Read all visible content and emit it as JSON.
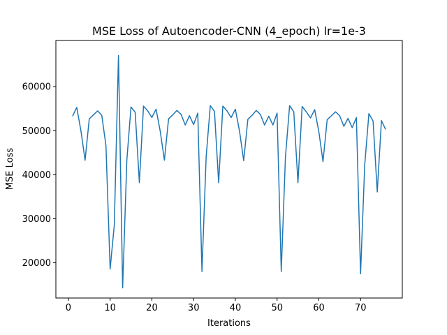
{
  "chart_data": {
    "type": "line",
    "title": "MSE Loss of Autoencoder-CNN (4_epoch) lr=1e-3",
    "xlabel": "Iterations",
    "ylabel": "MSE Loss",
    "xlim": [
      -3,
      80
    ],
    "ylim": [
      12000,
      70500
    ],
    "xticks": [
      0,
      10,
      20,
      30,
      40,
      50,
      60,
      70
    ],
    "yticks": [
      20000,
      30000,
      40000,
      50000,
      60000
    ],
    "ytick_labels": [
      "20000",
      "30000",
      "40000",
      "50000",
      "60000"
    ],
    "grid": false,
    "legend": "none",
    "series": [
      {
        "color": "#1f77b4",
        "x": [
          1,
          2,
          3,
          4,
          5,
          6,
          7,
          8,
          9,
          10,
          11,
          12,
          13,
          14,
          15,
          16,
          17,
          18,
          19,
          20,
          21,
          22,
          23,
          24,
          25,
          26,
          27,
          28,
          29,
          30,
          31,
          32,
          33,
          34,
          35,
          36,
          37,
          38,
          39,
          40,
          41,
          42,
          43,
          44,
          45,
          46,
          47,
          48,
          49,
          50,
          51,
          52,
          53,
          54,
          55,
          56,
          57,
          58,
          59,
          60,
          61,
          62,
          63,
          64,
          65,
          66,
          67,
          68,
          69,
          70,
          71,
          72,
          73,
          74,
          75,
          76
        ],
        "values": [
          53300,
          55300,
          50000,
          43300,
          52700,
          53600,
          54500,
          53500,
          46600,
          18600,
          28600,
          67100,
          14300,
          43300,
          55400,
          54200,
          38200,
          55600,
          54500,
          53000,
          54900,
          49900,
          43300,
          52700,
          53600,
          54600,
          53700,
          51300,
          53400,
          51400,
          54000,
          18000,
          44000,
          55700,
          54400,
          38200,
          55600,
          54500,
          53000,
          54900,
          49900,
          43200,
          52600,
          53500,
          54600,
          53700,
          51300,
          53300,
          51300,
          54000,
          18000,
          44000,
          55700,
          54300,
          38200,
          55500,
          54300,
          52900,
          54800,
          49800,
          43000,
          52500,
          53400,
          54300,
          53400,
          51000,
          52800,
          50700,
          53000,
          17500,
          42300,
          53900,
          52200,
          36100,
          52300,
          50300
        ]
      }
    ]
  }
}
